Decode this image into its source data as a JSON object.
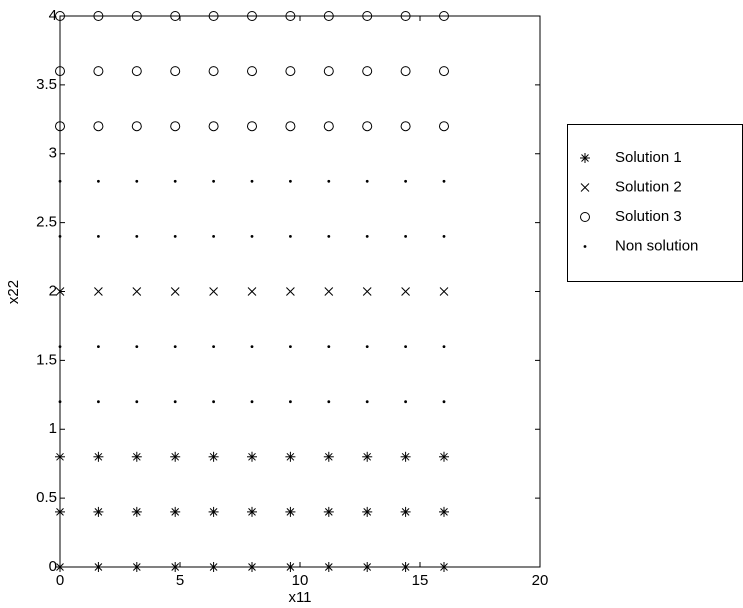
{
  "chart_data": {
    "type": "scatter",
    "x_label": "x11",
    "y_label": "x22",
    "xlim": [
      0,
      20
    ],
    "ylim": [
      0,
      4
    ],
    "xticks": [
      0,
      5,
      10,
      15,
      20
    ],
    "yticks": [
      0,
      0.5,
      1,
      1.5,
      2,
      2.5,
      3,
      3.5,
      4
    ],
    "grid": false,
    "legend": "outside right",
    "series": [
      {
        "name": "Solution 1",
        "marker": "*",
        "color": "#000000",
        "x": [
          0,
          1.6,
          3.2,
          4.8,
          6.4,
          8,
          9.6,
          11.2,
          12.8,
          14.4,
          16,
          0,
          1.6,
          3.2,
          4.8,
          6.4,
          8,
          9.6,
          11.2,
          12.8,
          14.4,
          16,
          0,
          1.6,
          3.2,
          4.8,
          6.4,
          8,
          9.6,
          11.2,
          12.8,
          14.4,
          16
        ],
        "values": [
          0,
          0,
          0,
          0,
          0,
          0,
          0,
          0,
          0,
          0,
          0,
          0.4,
          0.4,
          0.4,
          0.4,
          0.4,
          0.4,
          0.4,
          0.4,
          0.4,
          0.4,
          0.4,
          0.8,
          0.8,
          0.8,
          0.8,
          0.8,
          0.8,
          0.8,
          0.8,
          0.8,
          0.8,
          0.8
        ]
      },
      {
        "name": "Solution 2",
        "marker": "x",
        "color": "#000000",
        "x": [
          0,
          1.6,
          3.2,
          4.8,
          6.4,
          8,
          9.6,
          11.2,
          12.8,
          14.4,
          16
        ],
        "values": [
          2,
          2,
          2,
          2,
          2,
          2,
          2,
          2,
          2,
          2,
          2
        ]
      },
      {
        "name": "Solution 3",
        "marker": "o",
        "color": "#000000",
        "x": [
          0,
          1.6,
          3.2,
          4.8,
          6.4,
          8,
          9.6,
          11.2,
          12.8,
          14.4,
          16,
          0,
          1.6,
          3.2,
          4.8,
          6.4,
          8,
          9.6,
          11.2,
          12.8,
          14.4,
          16,
          0,
          1.6,
          3.2,
          4.8,
          6.4,
          8,
          9.6,
          11.2,
          12.8,
          14.4,
          16
        ],
        "values": [
          3.2,
          3.2,
          3.2,
          3.2,
          3.2,
          3.2,
          3.2,
          3.2,
          3.2,
          3.2,
          3.2,
          3.6,
          3.6,
          3.6,
          3.6,
          3.6,
          3.6,
          3.6,
          3.6,
          3.6,
          3.6,
          3.6,
          4,
          4,
          4,
          4,
          4,
          4,
          4,
          4,
          4,
          4,
          4
        ]
      },
      {
        "name": "Non solution",
        "marker": ".",
        "color": "#000000",
        "x": [
          0,
          1.6,
          3.2,
          4.8,
          6.4,
          8,
          9.6,
          11.2,
          12.8,
          14.4,
          16,
          0,
          1.6,
          3.2,
          4.8,
          6.4,
          8,
          9.6,
          11.2,
          12.8,
          14.4,
          16,
          0,
          1.6,
          3.2,
          4.8,
          6.4,
          8,
          9.6,
          11.2,
          12.8,
          14.4,
          16,
          0,
          1.6,
          3.2,
          4.8,
          6.4,
          8,
          9.6,
          11.2,
          12.8,
          14.4,
          16
        ],
        "values": [
          1.2,
          1.2,
          1.2,
          1.2,
          1.2,
          1.2,
          1.2,
          1.2,
          1.2,
          1.2,
          1.2,
          1.6,
          1.6,
          1.6,
          1.6,
          1.6,
          1.6,
          1.6,
          1.6,
          1.6,
          1.6,
          1.6,
          2.4,
          2.4,
          2.4,
          2.4,
          2.4,
          2.4,
          2.4,
          2.4,
          2.4,
          2.4,
          2.4,
          2.8,
          2.8,
          2.8,
          2.8,
          2.8,
          2.8,
          2.8,
          2.8,
          2.8,
          2.8,
          2.8
        ]
      }
    ]
  }
}
